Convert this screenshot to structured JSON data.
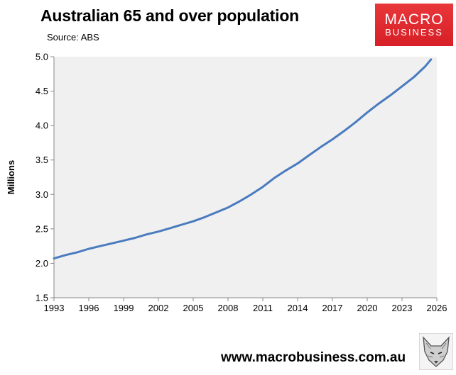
{
  "header": {
    "title": "Australian 65 and over population",
    "source": "Source: ABS"
  },
  "logo": {
    "line1": "MACRO",
    "line2": "BUSINESS"
  },
  "footer": {
    "url": "www.macrobusiness.com.au"
  },
  "colors": {
    "line": "#4a7bbf",
    "plot_bg": "#f0f0f0",
    "logo_red": "#e12a30"
  },
  "chart_data": {
    "type": "line",
    "title": "Australian 65 and over population",
    "subtitle": "Source: ABS",
    "ylabel": "Millions",
    "xlabel": "",
    "xlim": [
      1993,
      2026
    ],
    "ylim": [
      1.5,
      5.0
    ],
    "x_ticks": [
      "1993",
      "1996",
      "1999",
      "2002",
      "2005",
      "2008",
      "2011",
      "2014",
      "2017",
      "2020",
      "2023",
      "2026"
    ],
    "y_ticks": [
      "1.5",
      "2.0",
      "2.5",
      "3.0",
      "3.5",
      "4.0",
      "4.5",
      "5.0"
    ],
    "grid": false,
    "legend": "none",
    "series": [
      {
        "x": [
          1993,
          1994,
          1995,
          1996,
          1997,
          1998,
          1999,
          2000,
          2001,
          2002,
          2003,
          2004,
          2005,
          2006,
          2007,
          2008,
          2009,
          2010,
          2011,
          2012,
          2013,
          2014,
          2015,
          2016,
          2017,
          2018,
          2019,
          2020,
          2021,
          2022,
          2023,
          2024,
          2025,
          2025.5
        ],
        "y": [
          2.07,
          2.12,
          2.16,
          2.21,
          2.25,
          2.29,
          2.33,
          2.37,
          2.42,
          2.46,
          2.51,
          2.56,
          2.61,
          2.67,
          2.74,
          2.81,
          2.9,
          3.0,
          3.11,
          3.24,
          3.35,
          3.45,
          3.57,
          3.69,
          3.8,
          3.92,
          4.05,
          4.19,
          4.32,
          4.44,
          4.57,
          4.7,
          4.86,
          4.96
        ]
      }
    ]
  }
}
